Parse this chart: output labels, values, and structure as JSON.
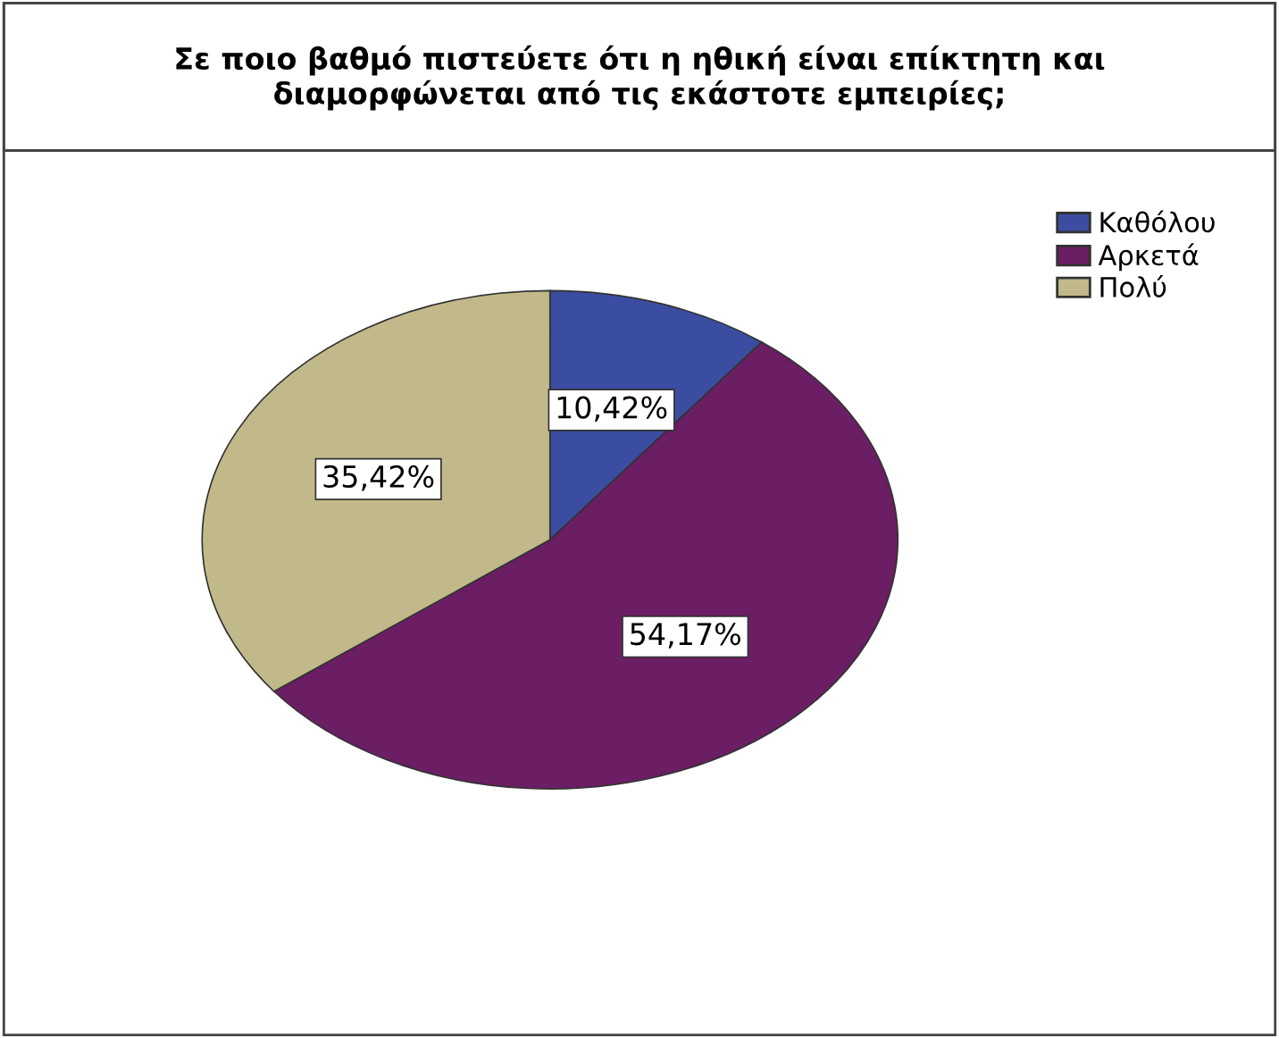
{
  "chart_data": {
    "type": "pie",
    "title": "Σε ποιο βαθμό πιστεύετε ότι η ηθική είναι επίκτητη και\nδιαμορφώνεται από τις εκάστοτε εμπειρίες;",
    "categories": [
      "Καθόλου",
      "Αρκετά",
      "Πολύ"
    ],
    "values": [
      10.42,
      54.17,
      35.42
    ],
    "value_labels": [
      "10,42%",
      "54,17%",
      "35,42%"
    ],
    "colors": [
      "#3b4da0",
      "#6b1e63",
      "#c2b98a"
    ],
    "legend": "top right"
  }
}
